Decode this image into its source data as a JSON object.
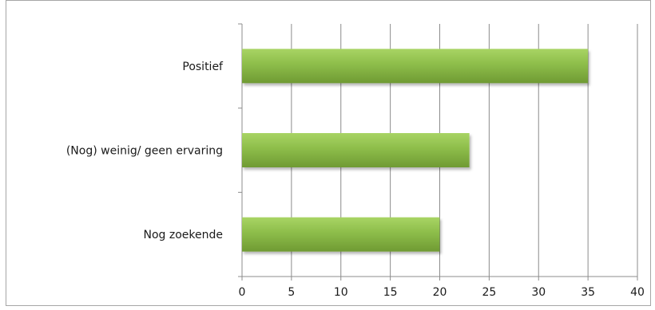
{
  "chart_data": {
    "type": "bar",
    "orientation": "horizontal",
    "categories": [
      "Positief",
      "(Nog) weinig/ geen ervaring",
      "Nog zoekende"
    ],
    "values": [
      35,
      23,
      20
    ],
    "xlim": [
      0,
      40
    ],
    "x_ticks": [
      0,
      5,
      10,
      15,
      20,
      25,
      30,
      35,
      40
    ],
    "grid": "vertical",
    "legend": "none",
    "bar_color": "#8dbd4a",
    "bar_color_light": "#a8d464",
    "bar_color_dark": "#6f9a33"
  }
}
